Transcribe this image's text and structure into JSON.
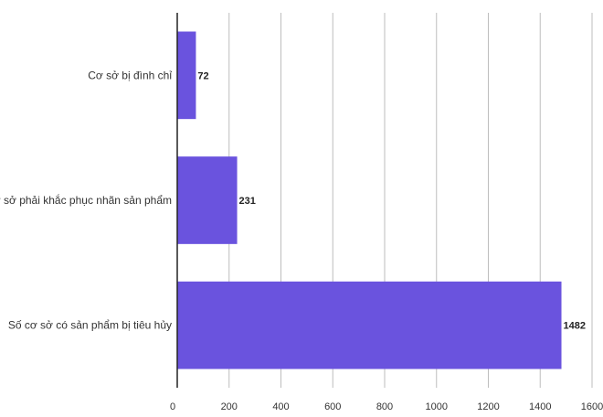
{
  "chart_data": {
    "type": "bar",
    "orientation": "horizontal",
    "title": "",
    "xlabel": "",
    "ylabel": "",
    "categories": [
      "Cơ sở bị đình chỉ",
      "Cơ sở phải khắc phục nhãn sản phẩm",
      "Số cơ sở có sản phẩm bị tiêu hủy"
    ],
    "values": [
      72,
      231,
      1482
    ],
    "value_labels": [
      "72",
      "231",
      "1482"
    ],
    "xlim": [
      0,
      1600
    ],
    "x_ticks": [
      0,
      200,
      400,
      600,
      800,
      1000,
      1200,
      1400,
      1600
    ],
    "x_tick_labels": [
      "0",
      "200",
      "400",
      "600",
      "800",
      "1000",
      "1200",
      "1400",
      "1600"
    ],
    "grid": true,
    "legend": "none",
    "bar_color": "#6a53de"
  }
}
